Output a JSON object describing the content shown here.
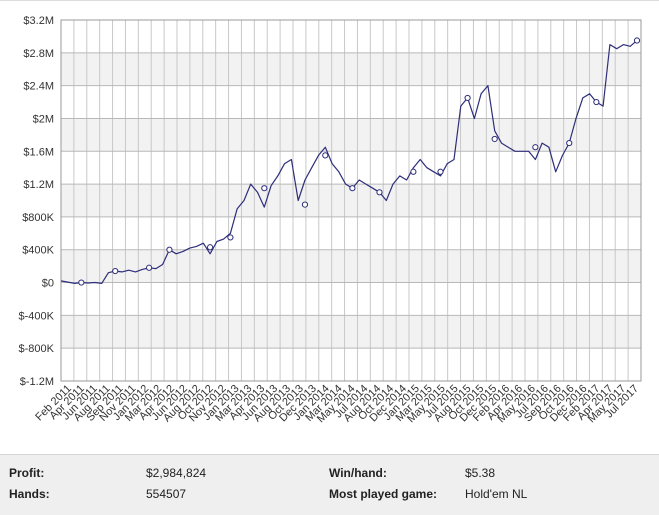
{
  "chart_data": {
    "type": "line",
    "title": "",
    "xlabel": "",
    "ylabel": "",
    "ylim": [
      -1200000,
      3200000
    ],
    "y_ticks": [
      {
        "value": 3200000,
        "label": "$3.2M"
      },
      {
        "value": 2800000,
        "label": "$2.8M"
      },
      {
        "value": 2400000,
        "label": "$2.4M"
      },
      {
        "value": 2000000,
        "label": "$2M"
      },
      {
        "value": 1600000,
        "label": "$1.6M"
      },
      {
        "value": 1200000,
        "label": "$1.2M"
      },
      {
        "value": 800000,
        "label": "$800K"
      },
      {
        "value": 400000,
        "label": "$400K"
      },
      {
        "value": 0,
        "label": "$0"
      },
      {
        "value": -400000,
        "label": "$-400K"
      },
      {
        "value": -800000,
        "label": "$-800K"
      },
      {
        "value": -1200000,
        "label": "$-1.2M"
      }
    ],
    "x_ticks": [
      "Feb 2011",
      "Apr 2011",
      "Jun 2011",
      "Aug 2011",
      "Sep 2011",
      "Nov 2011",
      "Jan 2012",
      "Mar 2012",
      "Apr 2012",
      "Jun 2012",
      "Aug 2012",
      "Oct 2012",
      "Nov 2012",
      "Jan 2013",
      "Mar 2013",
      "Apr 2013",
      "Jun 2013",
      "Aug 2013",
      "Oct 2013",
      "Dec 2013",
      "Jan 2014",
      "Mar 2014",
      "May 2014",
      "Jul 2014",
      "Aug 2014",
      "Oct 2014",
      "Dec 2014",
      "Jan 2015",
      "Mar 2015",
      "May 2015",
      "Jul 2015",
      "Aug 2015",
      "Oct 2015",
      "Dec 2015",
      "Feb 2016",
      "Apr 2016",
      "May 2016",
      "Jul 2016",
      "Sep 2016",
      "Oct 2016",
      "Dec 2016",
      "Feb 2017",
      "Apr 2017",
      "May 2017",
      "Jul 2017"
    ],
    "grid": true,
    "line_color": "#2e2e7a",
    "band_color": "#f2f2f2",
    "series": [
      {
        "points": [
          [
            0,
            20000
          ],
          [
            1,
            5000
          ],
          [
            2,
            -10000
          ],
          [
            3,
            0
          ],
          [
            4,
            -5000
          ],
          [
            5,
            0
          ],
          [
            6,
            -10000
          ],
          [
            7,
            120000
          ],
          [
            8,
            140000
          ],
          [
            9,
            130000
          ],
          [
            10,
            150000
          ],
          [
            11,
            130000
          ],
          [
            12,
            160000
          ],
          [
            13,
            180000
          ],
          [
            14,
            170000
          ],
          [
            15,
            220000
          ],
          [
            16,
            400000
          ],
          [
            17,
            350000
          ],
          [
            18,
            380000
          ],
          [
            19,
            420000
          ],
          [
            20,
            440000
          ],
          [
            21,
            480000
          ],
          [
            22,
            350000
          ],
          [
            23,
            500000
          ],
          [
            24,
            530000
          ],
          [
            25,
            600000
          ],
          [
            26,
            900000
          ],
          [
            27,
            1000000
          ],
          [
            28,
            1200000
          ],
          [
            29,
            1100000
          ],
          [
            30,
            920000
          ],
          [
            31,
            1180000
          ],
          [
            32,
            1300000
          ],
          [
            33,
            1450000
          ],
          [
            34,
            1500000
          ],
          [
            35,
            1000000
          ],
          [
            36,
            1250000
          ],
          [
            37,
            1400000
          ],
          [
            38,
            1550000
          ],
          [
            39,
            1650000
          ],
          [
            40,
            1450000
          ],
          [
            41,
            1350000
          ],
          [
            42,
            1200000
          ],
          [
            43,
            1150000
          ],
          [
            44,
            1250000
          ],
          [
            45,
            1200000
          ],
          [
            46,
            1150000
          ],
          [
            47,
            1100000
          ],
          [
            48,
            1000000
          ],
          [
            49,
            1200000
          ],
          [
            50,
            1300000
          ],
          [
            51,
            1250000
          ],
          [
            52,
            1400000
          ],
          [
            53,
            1500000
          ],
          [
            54,
            1400000
          ],
          [
            55,
            1350000
          ],
          [
            56,
            1300000
          ],
          [
            57,
            1450000
          ],
          [
            58,
            1500000
          ],
          [
            59,
            2150000
          ],
          [
            60,
            2250000
          ],
          [
            61,
            2000000
          ],
          [
            62,
            2300000
          ],
          [
            63,
            2400000
          ],
          [
            64,
            1850000
          ],
          [
            65,
            1700000
          ],
          [
            66,
            1650000
          ],
          [
            67,
            1600000
          ],
          [
            68,
            1600000
          ],
          [
            69,
            1600000
          ],
          [
            70,
            1500000
          ],
          [
            71,
            1700000
          ],
          [
            72,
            1650000
          ],
          [
            73,
            1350000
          ],
          [
            74,
            1550000
          ],
          [
            75,
            1700000
          ],
          [
            76,
            2000000
          ],
          [
            77,
            2250000
          ],
          [
            78,
            2300000
          ],
          [
            79,
            2200000
          ],
          [
            80,
            2150000
          ],
          [
            81,
            2900000
          ],
          [
            82,
            2850000
          ],
          [
            83,
            2900000
          ],
          [
            84,
            2880000
          ],
          [
            85,
            2950000
          ]
        ],
        "markers": [
          [
            3,
            0
          ],
          [
            8,
            140000
          ],
          [
            13,
            180000
          ],
          [
            16,
            400000
          ],
          [
            22,
            430000
          ],
          [
            25,
            550000
          ],
          [
            30,
            1150000
          ],
          [
            36,
            950000
          ],
          [
            39,
            1550000
          ],
          [
            43,
            1150000
          ],
          [
            47,
            1100000
          ],
          [
            52,
            1350000
          ],
          [
            56,
            1350000
          ],
          [
            60,
            2250000
          ],
          [
            64,
            1750000
          ],
          [
            70,
            1650000
          ],
          [
            75,
            1700000
          ],
          [
            79,
            2200000
          ],
          [
            85,
            2950000
          ]
        ]
      }
    ]
  },
  "stats": {
    "profit_label": "Profit:",
    "profit_value": "$2,984,824",
    "hands_label": "Hands:",
    "hands_value": "554507",
    "winhand_label": "Win/hand:",
    "winhand_value": "$5.38",
    "game_label": "Most played game:",
    "game_value": "Hold'em NL"
  }
}
